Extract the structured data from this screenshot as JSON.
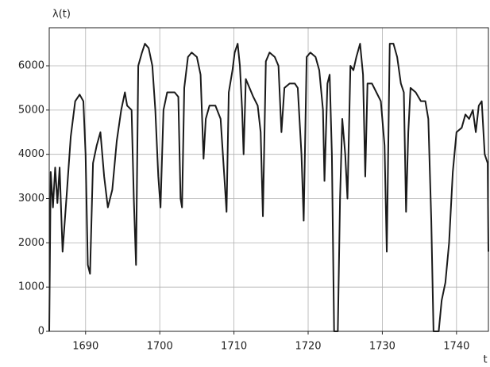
{
  "chart_data": {
    "type": "line",
    "y_label": "λ(t)",
    "x_label": "t",
    "x": [
      1685.1,
      1685.3,
      1685.6,
      1685.9,
      1686.2,
      1686.5,
      1686.9,
      1687.5,
      1688,
      1688.6,
      1689.2,
      1689.7,
      1690.0,
      1690.3,
      1690.6,
      1691.0,
      1691.5,
      1692.0,
      1692.5,
      1693.0,
      1693.6,
      1694.2,
      1694.8,
      1695.3,
      1695.6,
      1696.2,
      1696.5,
      1696.8,
      1697.1,
      1697.6,
      1698.0,
      1698.5,
      1699.0,
      1699.4,
      1699.8,
      1700.1,
      1700.5,
      1701,
      1702,
      1702.5,
      1702.8,
      1703.0,
      1703.3,
      1703.8,
      1704.3,
      1705.0,
      1705.5,
      1705.9,
      1706.2,
      1706.7,
      1707.5,
      1708.2,
      1708.7,
      1709.0,
      1709.3,
      1709.8,
      1710.1,
      1710.5,
      1710.8,
      1711.1,
      1711.3,
      1711.6,
      1712.1,
      1712.6,
      1713.2,
      1713.6,
      1713.9,
      1714.3,
      1714.8,
      1715.5,
      1716.0,
      1716.4,
      1716.8,
      1717.5,
      1718.2,
      1718.6,
      1719.1,
      1719.4,
      1719.8,
      1720.3,
      1721.0,
      1721.5,
      1722.0,
      1722.2,
      1722.6,
      1722.9,
      1723.2,
      1723.5,
      1724.0,
      1724.3,
      1724.6,
      1725.0,
      1725.3,
      1725.7,
      1726.1,
      1726.5,
      1727.0,
      1727.4,
      1727.7,
      1728.0,
      1728.6,
      1729.2,
      1729.8,
      1730.3,
      1730.6,
      1731.0,
      1731.5,
      1732.0,
      1732.5,
      1732.9,
      1733.2,
      1733.5,
      1733.8,
      1734.5,
      1735.2,
      1735.8,
      1736.2,
      1736.6,
      1736.9,
      1737.6,
      1738.0,
      1738.5,
      1739.0,
      1739.5,
      1740.0,
      1740.7,
      1741.2,
      1741.7,
      1742.2,
      1742.6,
      1743.0,
      1743.4,
      1743.8,
      1744.2,
      1744.3
    ],
    "values": [
      0,
      3600,
      2800,
      3700,
      2900,
      3700,
      1800,
      3200,
      4400,
      5200,
      5350,
      5200,
      4000,
      1500,
      1300,
      3800,
      4200,
      4500,
      3500,
      2800,
      3200,
      4300,
      5000,
      5400,
      5100,
      5000,
      3000,
      1500,
      6000,
      6300,
      6500,
      6400,
      6000,
      5000,
      3500,
      2800,
      5000,
      5400,
      5400,
      5300,
      3000,
      2800,
      5500,
      6200,
      6300,
      6200,
      5800,
      3900,
      4800,
      5100,
      5100,
      4800,
      3500,
      2700,
      5400,
      5900,
      6300,
      6500,
      6000,
      5000,
      4000,
      5700,
      5500,
      5300,
      5100,
      4500,
      2600,
      6100,
      6300,
      6200,
      6000,
      4500,
      5500,
      5600,
      5600,
      5500,
      4000,
      2500,
      6200,
      6300,
      6200,
      5900,
      5000,
      3400,
      5600,
      5800,
      4000,
      0,
      0,
      3000,
      4800,
      4000,
      3000,
      6000,
      5900,
      6200,
      6500,
      5800,
      3500,
      5600,
      5600,
      5400,
      5200,
      4200,
      1800,
      6500,
      6500,
      6200,
      5600,
      5400,
      2700,
      4500,
      5500,
      5400,
      5200,
      5200,
      4800,
      2500,
      0,
      0,
      700,
      1100,
      2000,
      3600,
      4500,
      4600,
      4900,
      4800,
      5000,
      4500,
      5100,
      5200,
      4000,
      3800,
      1800
    ],
    "color": "#1a1a1a",
    "xlim": [
      1685.1,
      1744.3
    ],
    "ylim": [
      0,
      6860
    ],
    "xticks": [
      1690,
      1700,
      1710,
      1720,
      1730,
      1740
    ],
    "yticks": [
      0,
      1000,
      2000,
      3000,
      4000,
      5000,
      6000
    ],
    "grid": true
  }
}
